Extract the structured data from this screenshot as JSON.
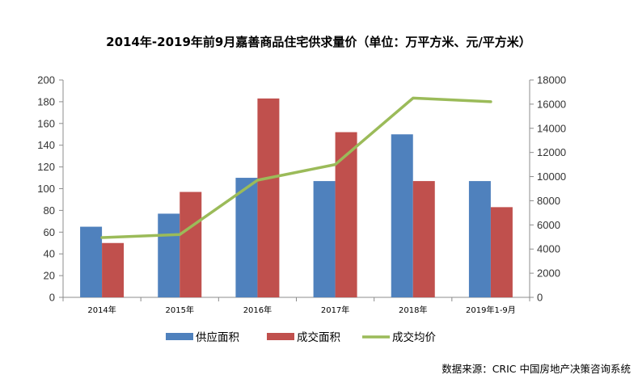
{
  "chart_data": {
    "type": "bar",
    "title": "2014年-2019年前9月嘉善商品住宅供求量价（单位：万平方米、元/平方米）",
    "categories": [
      "2014年",
      "2015年",
      "2016年",
      "2017年",
      "2018年",
      "2019年1-9月"
    ],
    "series": [
      {
        "name": "供应面积",
        "type": "bar",
        "axis": "left",
        "color": "#4F81BD",
        "values": [
          65,
          77,
          110,
          107,
          150,
          107
        ]
      },
      {
        "name": "成交面积",
        "type": "bar",
        "axis": "left",
        "color": "#C0504D",
        "values": [
          50,
          97,
          183,
          152,
          107,
          83
        ]
      }
    ],
    "line_series": {
      "name": "成交均价",
      "type": "line",
      "axis": "right",
      "color": "#9BBB59",
      "values": [
        4950,
        5200,
        9700,
        11000,
        16500,
        16200
      ]
    },
    "ylim_left": [
      0,
      200
    ],
    "yticks_left": [
      "0",
      "20",
      "40",
      "60",
      "80",
      "100",
      "120",
      "140",
      "160",
      "180",
      "200"
    ],
    "ylim_right": [
      0,
      18000
    ],
    "yticks_right": [
      "0",
      "2000",
      "4000",
      "6000",
      "8000",
      "10000",
      "12000",
      "14000",
      "16000",
      "18000"
    ],
    "grid": false,
    "legend_position": "bottom",
    "source": "数据来源：CRIC 中国房地产决策咨询系统"
  }
}
